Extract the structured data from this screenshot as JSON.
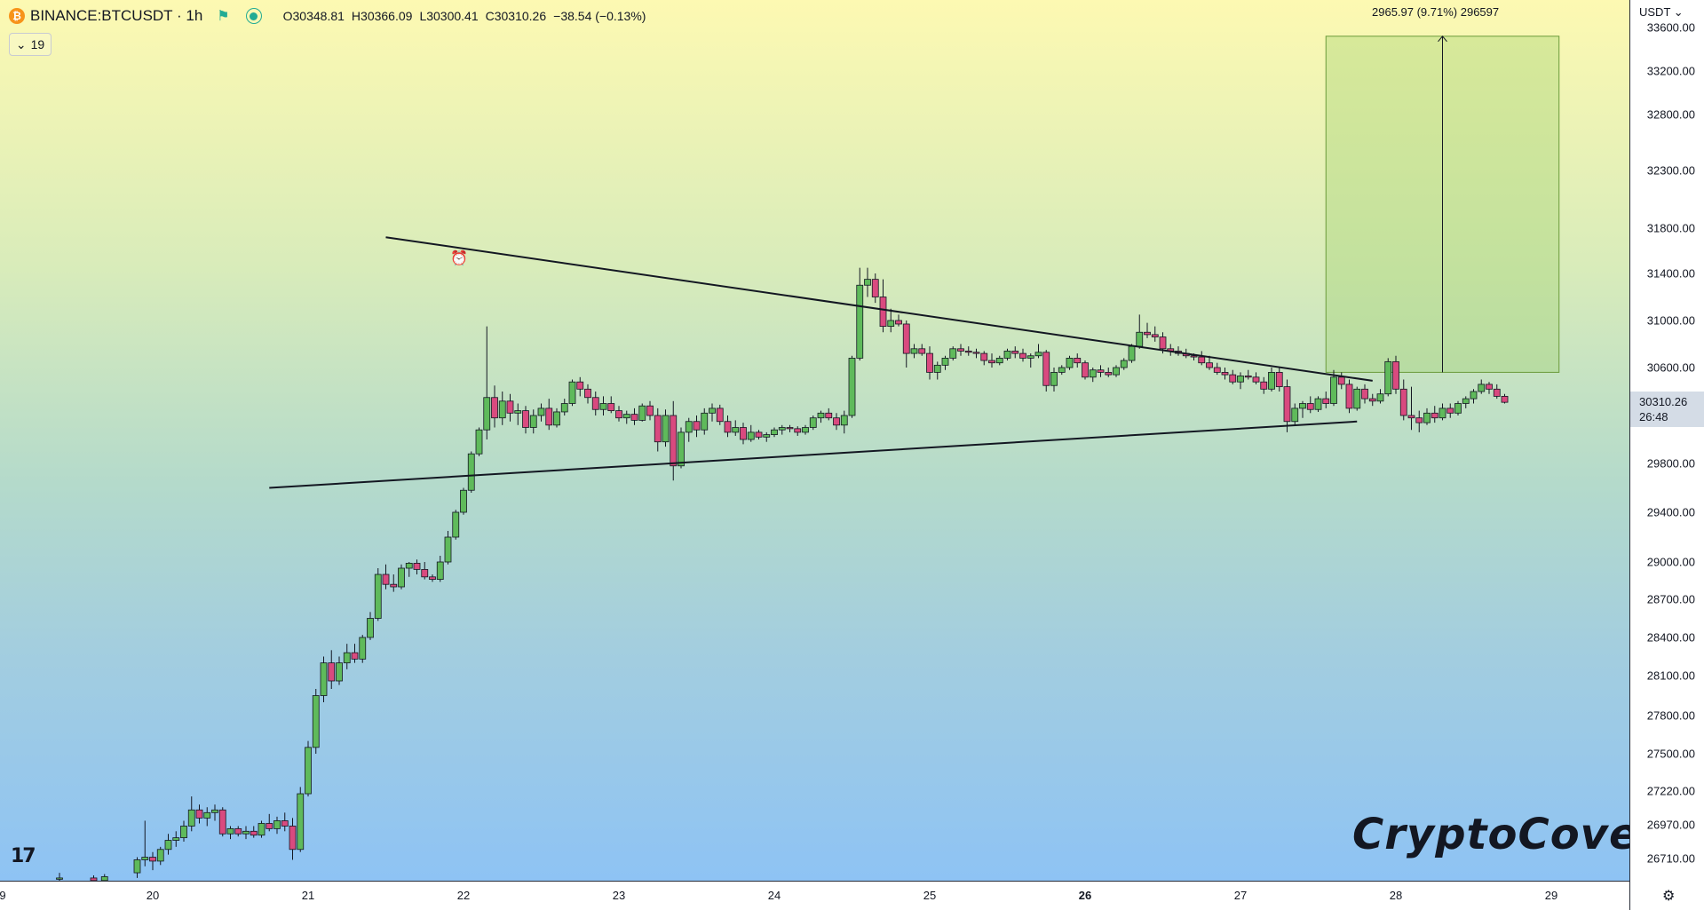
{
  "legend": {
    "symbol": "BINANCE:BTCUSDT · 1h",
    "open": "O30348.81",
    "high": "H30366.09",
    "low": "L30300.41",
    "close": "C30310.26",
    "change": "−38.54 (−0.13%)",
    "indicator_count": "19",
    "icons": [
      "bitcoin-icon",
      "flag-icon",
      "status-icon",
      "chevron-down-icon"
    ]
  },
  "price_axis": {
    "currency": "USDT",
    "ticks": [
      "33600.00",
      "33200.00",
      "32800.00",
      "32300.00",
      "31800.00",
      "31400.00",
      "31000.00",
      "30600.00",
      "29800.00",
      "29400.00",
      "29000.00",
      "28700.00",
      "28400.00",
      "28100.00",
      "27800.00",
      "27500.00",
      "27220.00",
      "26970.00",
      "26710.00"
    ],
    "last_price": "30310.26",
    "countdown": "26:48"
  },
  "time_axis": {
    "ticks": [
      "9",
      "20",
      "21",
      "22",
      "23",
      "24",
      "25",
      "26",
      "27",
      "28",
      "29"
    ]
  },
  "measure": {
    "label": "2965.97 (9.71%) 296597"
  },
  "watermark": "CryptoCove",
  "colors": {
    "up": "#26a69a",
    "down": "#ef5350",
    "body_up": "#5fba5b",
    "body_down": "#d94a7f"
  },
  "chart_data": {
    "type": "candlestick",
    "title": "",
    "x_unit": "day of month (hourly candles)",
    "ylim": [
      26500,
      33700
    ],
    "candles": [
      [
        19.4,
        26550,
        26600,
        26500,
        26560
      ],
      [
        19.62,
        26560,
        26580,
        26520,
        26540
      ],
      [
        19.69,
        26540,
        26590,
        26520,
        26570
      ],
      [
        19.9,
        26600,
        26720,
        26560,
        26700
      ],
      [
        19.95,
        26700,
        27000,
        26650,
        26720
      ],
      [
        20.0,
        26720,
        26760,
        26620,
        26690
      ],
      [
        20.05,
        26690,
        26800,
        26660,
        26780
      ],
      [
        20.1,
        26780,
        26900,
        26740,
        26850
      ],
      [
        20.15,
        26850,
        26920,
        26800,
        26870
      ],
      [
        20.2,
        26870,
        27000,
        26840,
        26960
      ],
      [
        20.25,
        26960,
        27180,
        26920,
        27080
      ],
      [
        20.3,
        27080,
        27120,
        26980,
        27020
      ],
      [
        20.35,
        27020,
        27100,
        26960,
        27060
      ],
      [
        20.4,
        27060,
        27120,
        27000,
        27080
      ],
      [
        20.45,
        27080,
        27100,
        26880,
        26900
      ],
      [
        20.5,
        26900,
        26960,
        26860,
        26940
      ],
      [
        20.55,
        26940,
        26960,
        26880,
        26900
      ],
      [
        20.6,
        26900,
        26960,
        26860,
        26920
      ],
      [
        20.65,
        26920,
        26960,
        26870,
        26890
      ],
      [
        20.7,
        26890,
        27000,
        26870,
        26980
      ],
      [
        20.75,
        26980,
        27050,
        26920,
        26940
      ],
      [
        20.8,
        26940,
        27030,
        26900,
        27000
      ],
      [
        20.85,
        27000,
        27060,
        26920,
        26960
      ],
      [
        20.9,
        26960,
        27020,
        26700,
        26780
      ],
      [
        20.95,
        26780,
        27250,
        26760,
        27200
      ],
      [
        21.0,
        27200,
        27600,
        27180,
        27550
      ],
      [
        21.05,
        27550,
        28000,
        27500,
        27950
      ],
      [
        21.1,
        27950,
        28250,
        27900,
        28200
      ],
      [
        21.15,
        28200,
        28300,
        28000,
        28060
      ],
      [
        21.2,
        28060,
        28250,
        28030,
        28200
      ],
      [
        21.25,
        28200,
        28350,
        28150,
        28280
      ],
      [
        21.3,
        28280,
        28350,
        28200,
        28230
      ],
      [
        21.35,
        28230,
        28420,
        28200,
        28400
      ],
      [
        21.4,
        28400,
        28600,
        28380,
        28550
      ],
      [
        21.45,
        28550,
        28950,
        28530,
        28900
      ],
      [
        21.5,
        28900,
        28980,
        28780,
        28820
      ],
      [
        21.55,
        28820,
        28900,
        28760,
        28800
      ],
      [
        21.6,
        28800,
        28980,
        28780,
        28950
      ],
      [
        21.65,
        28950,
        29000,
        28880,
        28990
      ],
      [
        21.7,
        28990,
        29020,
        28900,
        28940
      ],
      [
        21.75,
        28940,
        29000,
        28860,
        28880
      ],
      [
        21.8,
        28880,
        28900,
        28840,
        28860
      ],
      [
        21.85,
        28860,
        29050,
        28840,
        29000
      ],
      [
        21.9,
        29000,
        29250,
        28980,
        29200
      ],
      [
        21.95,
        29200,
        29420,
        29180,
        29400
      ],
      [
        22.0,
        29400,
        29600,
        29380,
        29580
      ],
      [
        22.05,
        29580,
        29900,
        29560,
        29880
      ],
      [
        22.1,
        29880,
        30100,
        29860,
        30080
      ],
      [
        22.15,
        30080,
        30950,
        30000,
        30350
      ],
      [
        22.2,
        30350,
        30450,
        30100,
        30180
      ],
      [
        22.25,
        30180,
        30400,
        30120,
        30320
      ],
      [
        22.3,
        30320,
        30380,
        30150,
        30220
      ],
      [
        22.35,
        30220,
        30300,
        30120,
        30240
      ],
      [
        22.4,
        30240,
        30280,
        30050,
        30100
      ],
      [
        22.45,
        30100,
        30250,
        30050,
        30200
      ],
      [
        22.5,
        30200,
        30300,
        30150,
        30260
      ],
      [
        22.55,
        30260,
        30340,
        30080,
        30120
      ],
      [
        22.6,
        30120,
        30260,
        30100,
        30230
      ],
      [
        22.65,
        30230,
        30340,
        30200,
        30300
      ],
      [
        22.7,
        30300,
        30500,
        30280,
        30480
      ],
      [
        22.75,
        30480,
        30520,
        30360,
        30420
      ],
      [
        22.8,
        30420,
        30460,
        30300,
        30350
      ],
      [
        22.85,
        30350,
        30400,
        30200,
        30250
      ],
      [
        22.9,
        30250,
        30360,
        30200,
        30300
      ],
      [
        22.95,
        30300,
        30360,
        30220,
        30240
      ],
      [
        23.0,
        30240,
        30280,
        30150,
        30180
      ],
      [
        23.05,
        30180,
        30240,
        30130,
        30210
      ],
      [
        23.1,
        30210,
        30260,
        30120,
        30160
      ],
      [
        23.15,
        30160,
        30300,
        30150,
        30280
      ],
      [
        23.2,
        30280,
        30320,
        30160,
        30200
      ],
      [
        23.25,
        30200,
        30260,
        29900,
        29980
      ],
      [
        23.3,
        29980,
        30250,
        29940,
        30200
      ],
      [
        23.35,
        30200,
        30320,
        29660,
        29780
      ],
      [
        23.4,
        29780,
        30100,
        29760,
        30060
      ],
      [
        23.45,
        30060,
        30180,
        29980,
        30150
      ],
      [
        23.5,
        30150,
        30200,
        30020,
        30080
      ],
      [
        23.55,
        30080,
        30260,
        30040,
        30220
      ],
      [
        23.6,
        30220,
        30300,
        30150,
        30260
      ],
      [
        23.65,
        30260,
        30290,
        30120,
        30150
      ],
      [
        23.7,
        30150,
        30200,
        30020,
        30060
      ],
      [
        23.75,
        30060,
        30160,
        30030,
        30100
      ],
      [
        23.8,
        30100,
        30140,
        29960,
        30000
      ],
      [
        23.85,
        30000,
        30120,
        29980,
        30060
      ],
      [
        23.9,
        30060,
        30080,
        30000,
        30020
      ],
      [
        23.95,
        30020,
        30060,
        29980,
        30040
      ],
      [
        24.0,
        30040,
        30100,
        30020,
        30080
      ],
      [
        24.05,
        30080,
        30120,
        30040,
        30100
      ],
      [
        24.1,
        30100,
        30120,
        30060,
        30090
      ],
      [
        24.15,
        30090,
        30110,
        30030,
        30060
      ],
      [
        24.2,
        30060,
        30120,
        30040,
        30100
      ],
      [
        24.25,
        30100,
        30200,
        30080,
        30180
      ],
      [
        24.3,
        30180,
        30240,
        30140,
        30220
      ],
      [
        24.35,
        30220,
        30260,
        30160,
        30180
      ],
      [
        24.4,
        30180,
        30220,
        30080,
        30120
      ],
      [
        24.45,
        30120,
        30240,
        30050,
        30200
      ],
      [
        24.5,
        30200,
        30700,
        30180,
        30680
      ],
      [
        24.55,
        30680,
        31450,
        30660,
        31300
      ],
      [
        24.6,
        31300,
        31450,
        31200,
        31350
      ],
      [
        24.65,
        31350,
        31400,
        31150,
        31200
      ],
      [
        24.7,
        31200,
        31350,
        30900,
        30950
      ],
      [
        24.75,
        30950,
        31100,
        30900,
        31000
      ],
      [
        24.8,
        31000,
        31050,
        30950,
        30970
      ],
      [
        24.85,
        30970,
        31000,
        30600,
        30720
      ],
      [
        24.9,
        30720,
        30800,
        30680,
        30760
      ],
      [
        24.95,
        30760,
        30800,
        30700,
        30720
      ],
      [
        25.0,
        30720,
        30780,
        30500,
        30560
      ],
      [
        25.05,
        30560,
        30650,
        30500,
        30620
      ],
      [
        25.1,
        30620,
        30700,
        30580,
        30680
      ],
      [
        25.15,
        30680,
        30780,
        30660,
        30760
      ],
      [
        25.2,
        30760,
        30800,
        30700,
        30740
      ],
      [
        25.25,
        30740,
        30780,
        30700,
        30730
      ],
      [
        25.3,
        30730,
        30760,
        30680,
        30720
      ],
      [
        25.35,
        30720,
        30740,
        30620,
        30660
      ],
      [
        25.4,
        30660,
        30720,
        30600,
        30640
      ],
      [
        25.45,
        30640,
        30700,
        30620,
        30680
      ],
      [
        25.5,
        30680,
        30760,
        30660,
        30740
      ],
      [
        25.55,
        30740,
        30780,
        30680,
        30720
      ],
      [
        25.6,
        30720,
        30760,
        30650,
        30680
      ],
      [
        25.65,
        30680,
        30720,
        30600,
        30700
      ],
      [
        25.7,
        30700,
        30800,
        30680,
        30730
      ],
      [
        25.75,
        30730,
        30750,
        30400,
        30450
      ],
      [
        25.8,
        30450,
        30600,
        30400,
        30560
      ],
      [
        25.85,
        30560,
        30620,
        30540,
        30600
      ],
      [
        25.9,
        30600,
        30700,
        30580,
        30680
      ],
      [
        25.95,
        30680,
        30720,
        30600,
        30640
      ],
      [
        26.0,
        30640,
        30660,
        30500,
        30520
      ],
      [
        26.05,
        30520,
        30600,
        30480,
        30580
      ],
      [
        26.1,
        30580,
        30620,
        30520,
        30560
      ],
      [
        26.15,
        30560,
        30600,
        30520,
        30540
      ],
      [
        26.2,
        30540,
        30620,
        30520,
        30600
      ],
      [
        26.25,
        30600,
        30680,
        30580,
        30660
      ],
      [
        26.3,
        30660,
        30800,
        30640,
        30780
      ],
      [
        26.35,
        30780,
        31050,
        30760,
        30900
      ],
      [
        26.4,
        30900,
        30980,
        30850,
        30880
      ],
      [
        26.45,
        30880,
        30950,
        30820,
        30860
      ],
      [
        26.5,
        30860,
        30900,
        30720,
        30760
      ],
      [
        26.55,
        30760,
        30800,
        30700,
        30740
      ],
      [
        26.6,
        30740,
        30780,
        30700,
        30720
      ],
      [
        26.65,
        30720,
        30760,
        30680,
        30700
      ],
      [
        26.7,
        30700,
        30720,
        30660,
        30690
      ],
      [
        26.75,
        30690,
        30740,
        30620,
        30640
      ],
      [
        26.8,
        30640,
        30700,
        30580,
        30600
      ],
      [
        26.85,
        30600,
        30640,
        30540,
        30560
      ],
      [
        26.9,
        30560,
        30600,
        30500,
        30540
      ],
      [
        26.95,
        30540,
        30580,
        30460,
        30480
      ],
      [
        27.0,
        30480,
        30560,
        30420,
        30530
      ],
      [
        27.05,
        30530,
        30580,
        30500,
        30520
      ],
      [
        27.1,
        30520,
        30560,
        30460,
        30480
      ],
      [
        27.15,
        30480,
        30520,
        30380,
        30420
      ],
      [
        27.2,
        30420,
        30600,
        30400,
        30560
      ],
      [
        27.25,
        30560,
        30600,
        30400,
        30440
      ],
      [
        27.3,
        30440,
        30500,
        30060,
        30150
      ],
      [
        27.35,
        30150,
        30300,
        30120,
        30260
      ],
      [
        27.4,
        30260,
        30320,
        30180,
        30300
      ],
      [
        27.45,
        30300,
        30360,
        30220,
        30250
      ],
      [
        27.5,
        30250,
        30360,
        30230,
        30340
      ],
      [
        27.55,
        30340,
        30400,
        30260,
        30300
      ],
      [
        27.6,
        30300,
        30580,
        30280,
        30520
      ],
      [
        27.65,
        30520,
        30560,
        30420,
        30460
      ],
      [
        27.7,
        30460,
        30500,
        30220,
        30260
      ],
      [
        27.75,
        30260,
        30440,
        30240,
        30420
      ],
      [
        27.8,
        30420,
        30460,
        30300,
        30340
      ],
      [
        27.85,
        30340,
        30380,
        30280,
        30320
      ],
      [
        27.9,
        30320,
        30420,
        30300,
        30380
      ],
      [
        27.95,
        30380,
        30680,
        30360,
        30650
      ],
      [
        28.0,
        30650,
        30700,
        30380,
        30420
      ],
      [
        28.05,
        30420,
        30500,
        30160,
        30200
      ],
      [
        28.1,
        30200,
        30440,
        30080,
        30180
      ],
      [
        28.15,
        30180,
        30240,
        30060,
        30140
      ],
      [
        28.2,
        30140,
        30260,
        30120,
        30220
      ],
      [
        28.25,
        30220,
        30280,
        30140,
        30180
      ],
      [
        28.3,
        30180,
        30300,
        30160,
        30260
      ],
      [
        28.35,
        30260,
        30300,
        30180,
        30220
      ],
      [
        28.4,
        30220,
        30320,
        30200,
        30300
      ],
      [
        28.45,
        30300,
        30360,
        30260,
        30340
      ],
      [
        28.5,
        30340,
        30420,
        30300,
        30400
      ],
      [
        28.55,
        30400,
        30500,
        30380,
        30460
      ],
      [
        28.6,
        30460,
        30480,
        30380,
        30420
      ],
      [
        28.65,
        30420,
        30460,
        30340,
        30360
      ],
      [
        28.7,
        30360,
        30380,
        30300,
        30310
      ]
    ],
    "trendlines": [
      {
        "name": "upper-trendline",
        "from": [
          21.5,
          31720
        ],
        "to": [
          27.85,
          30490
        ]
      },
      {
        "name": "lower-trendline",
        "from": [
          20.75,
          29600
        ],
        "to": [
          27.75,
          30150
        ]
      }
    ],
    "measure_box": {
      "from_day": 27.55,
      "to_day": 29.05,
      "low": 30560,
      "high": 33520
    }
  }
}
